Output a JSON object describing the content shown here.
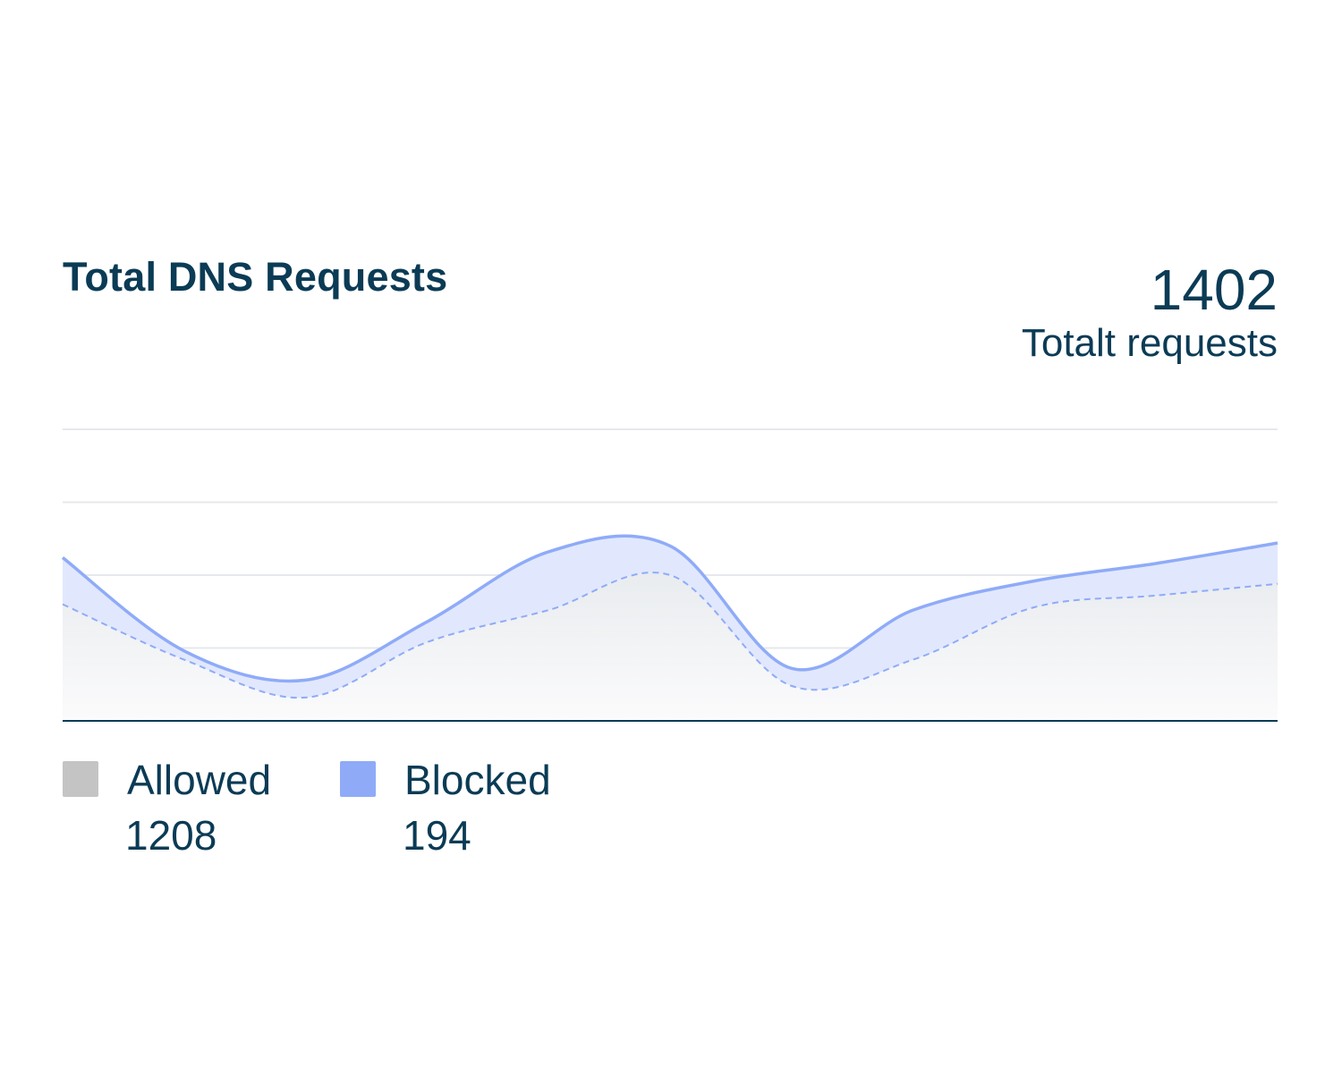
{
  "header": {
    "title": "Total DNS Requests",
    "total_value": "1402",
    "total_label": "Totalt requests"
  },
  "colors": {
    "text": "#0b3b55",
    "allowed": "#c4c4c4",
    "blocked": "#8fabf8",
    "blocked_fill": "#e1e8fd",
    "grid": "#e6e8ec",
    "axis": "#0b3b55"
  },
  "legend": [
    {
      "name": "Allowed",
      "value": "1208",
      "color": "#c4c4c4"
    },
    {
      "name": "Blocked",
      "value": "194",
      "color": "#8fabf8"
    }
  ],
  "chart_data": {
    "type": "area",
    "title": "Total DNS Requests",
    "xlabel": "",
    "ylabel": "",
    "x_ticks_shown": false,
    "y_ticks_shown": false,
    "grid": "horizontal",
    "ylim": [
      0,
      100
    ],
    "x": [
      0,
      1,
      2,
      3,
      4,
      5,
      6,
      7,
      8,
      9,
      10
    ],
    "series": [
      {
        "name": "Allowed",
        "style": "dashed",
        "values": [
          40,
          21,
          8,
          27,
          38,
          50,
          12,
          21,
          39,
          43,
          47
        ]
      },
      {
        "name": "Blocked",
        "style": "solid",
        "values": [
          56,
          24,
          14,
          34,
          58,
          60,
          18,
          38,
          48,
          54,
          61
        ]
      }
    ]
  }
}
